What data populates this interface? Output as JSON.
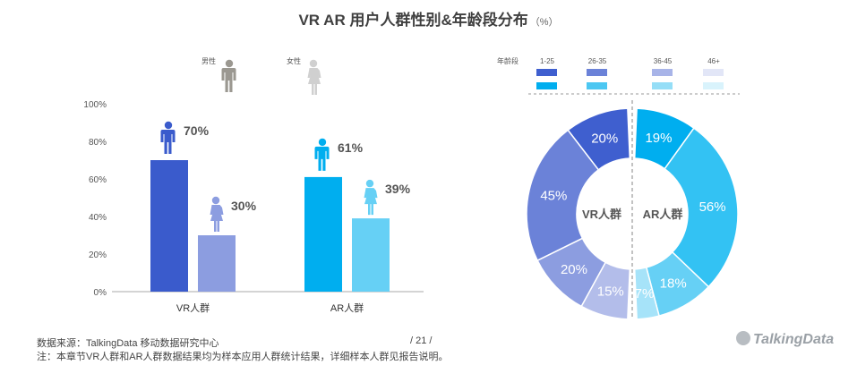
{
  "title": "VR  AR  用户人群性别&年龄段分布",
  "title_unit": "（%）",
  "gender_legend": {
    "male": "男性",
    "female": "女性"
  },
  "age_legend": {
    "label": "年龄段",
    "groups": [
      {
        "label": "1-25",
        "vr_color": "#3f5fcf",
        "ar_color": "#00aeef"
      },
      {
        "label": "26-35",
        "vr_color": "#6b82d8",
        "ar_color": "#4cc7f2"
      },
      {
        "label": "36-45",
        "vr_color": "#a8b4e8",
        "ar_color": "#95def7"
      },
      {
        "label": "46+",
        "vr_color": "#e2e6f7",
        "ar_color": "#d9f3fc"
      }
    ]
  },
  "chart_data": [
    {
      "type": "bar",
      "categories": [
        "VR人群",
        "AR人群"
      ],
      "series": [
        {
          "name": "男性",
          "values": [
            70,
            61
          ],
          "colors": [
            "#3a5bcc",
            "#00aeef"
          ]
        },
        {
          "name": "女性",
          "values": [
            30,
            39
          ],
          "colors": [
            "#8c9de0",
            "#66d0f5"
          ]
        }
      ],
      "value_labels": [
        [
          "70%",
          "61%"
        ],
        [
          "30%",
          "39%"
        ]
      ],
      "ylim": [
        0,
        100
      ],
      "yticks": [
        "0%",
        "20%",
        "40%",
        "60%",
        "80%",
        "100%"
      ]
    },
    {
      "type": "pie",
      "donut": true,
      "halves": [
        {
          "name": "VR人群",
          "slices": [
            {
              "value": 20,
              "label": "20%",
              "color": "#3f5fcf"
            },
            {
              "value": 45,
              "label": "45%",
              "color": "#6b82d8"
            },
            {
              "value": 20,
              "label": "20%",
              "color": "#8c9de0"
            },
            {
              "value": 15,
              "label": "15%",
              "color": "#b3bdea"
            }
          ]
        },
        {
          "name": "AR人群",
          "slices": [
            {
              "value": 19,
              "label": "19%",
              "color": "#00aeef"
            },
            {
              "value": 56,
              "label": "56%",
              "color": "#33c2f3"
            },
            {
              "value": 18,
              "label": "18%",
              "color": "#66d0f5"
            },
            {
              "value": 7,
              "label": "7%",
              "color": "#a6e3f9"
            }
          ]
        }
      ]
    }
  ],
  "footer": {
    "source": "数据来源：TalkingData 移动数据研究中心",
    "note": "注：本章节VR人群和AR人群数据结果均为样本应用人群统计结果，详细样本人群见报告说明。",
    "page": "/ 21 /"
  },
  "logo": "TalkingData"
}
